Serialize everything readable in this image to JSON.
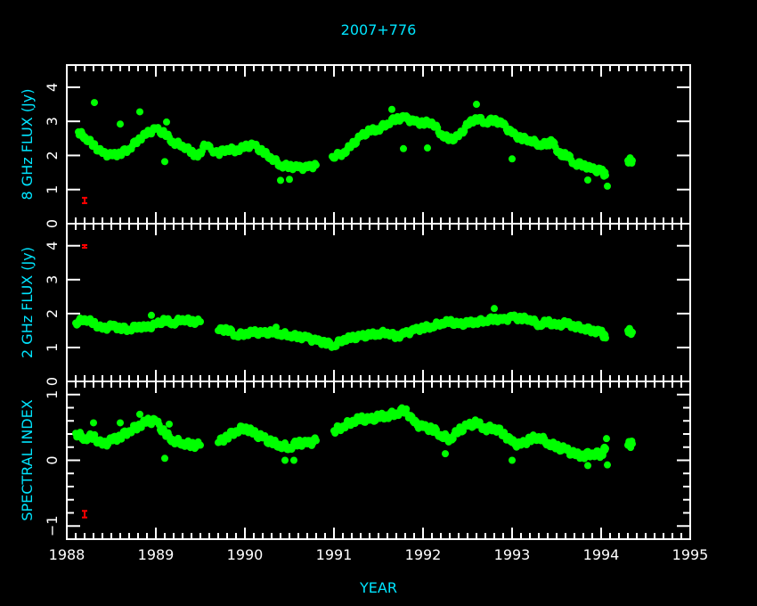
{
  "chart_data": {
    "type": "scatter",
    "title": "2007+776",
    "xlabel": "YEAR",
    "xlim": [
      1988,
      1995
    ],
    "xticks": [
      "1988",
      "1989",
      "1990",
      "1991",
      "1992",
      "1993",
      "1994",
      "1995"
    ],
    "point_color": "#00ff00",
    "error_bar_color": "#ff0000",
    "axis_color": "#ffffff",
    "label_color": "#00e5ff",
    "panels": [
      {
        "ylabel": "8 GHz FLUX (Jy)",
        "ylim": [
          0,
          4.65
        ],
        "yticks": [
          "0",
          "1",
          "2",
          "3",
          "4"
        ],
        "error_bar": {
          "x": 1988.2,
          "y": 0.68,
          "err": 0.08
        },
        "points": [
          [
            1988.13,
            2.69
          ],
          [
            1988.2,
            2.55
          ],
          [
            1988.3,
            2.3
          ],
          [
            1988.4,
            2.06
          ],
          [
            1988.5,
            2.0
          ],
          [
            1988.6,
            2.06
          ],
          [
            1988.7,
            2.2
          ],
          [
            1988.8,
            2.46
          ],
          [
            1988.9,
            2.64
          ],
          [
            1989.0,
            2.77
          ],
          [
            1989.1,
            2.64
          ],
          [
            1989.2,
            2.38
          ],
          [
            1989.3,
            2.3
          ],
          [
            1989.4,
            2.1
          ],
          [
            1989.47,
            1.95
          ],
          [
            1989.55,
            2.3
          ],
          [
            1989.7,
            2.06
          ],
          [
            1989.8,
            2.2
          ],
          [
            1989.9,
            2.15
          ],
          [
            1990.0,
            2.25
          ],
          [
            1990.1,
            2.3
          ],
          [
            1990.2,
            2.1
          ],
          [
            1990.3,
            1.93
          ],
          [
            1990.4,
            1.72
          ],
          [
            1990.5,
            1.68
          ],
          [
            1990.6,
            1.64
          ],
          [
            1990.7,
            1.64
          ],
          [
            1990.8,
            1.72
          ],
          [
            1990.98,
            1.97
          ],
          [
            1991.1,
            2.06
          ],
          [
            1991.2,
            2.3
          ],
          [
            1991.3,
            2.55
          ],
          [
            1991.4,
            2.72
          ],
          [
            1991.5,
            2.77
          ],
          [
            1991.6,
            2.95
          ],
          [
            1991.7,
            3.08
          ],
          [
            1991.8,
            3.1
          ],
          [
            1991.9,
            2.98
          ],
          [
            1992.0,
            2.95
          ],
          [
            1992.1,
            2.98
          ],
          [
            1992.2,
            2.64
          ],
          [
            1992.3,
            2.46
          ],
          [
            1992.4,
            2.55
          ],
          [
            1992.5,
            2.9
          ],
          [
            1992.6,
            3.1
          ],
          [
            1992.7,
            2.98
          ],
          [
            1992.8,
            3.05
          ],
          [
            1992.9,
            2.9
          ],
          [
            1993.0,
            2.64
          ],
          [
            1993.1,
            2.5
          ],
          [
            1993.2,
            2.46
          ],
          [
            1993.3,
            2.33
          ],
          [
            1993.4,
            2.33
          ],
          [
            1993.45,
            2.4
          ],
          [
            1993.55,
            1.98
          ],
          [
            1993.6,
            2.06
          ],
          [
            1993.7,
            1.77
          ],
          [
            1993.8,
            1.73
          ],
          [
            1993.9,
            1.59
          ],
          [
            1994.0,
            1.55
          ],
          [
            1994.05,
            1.42
          ],
          [
            1994.3,
            1.85
          ],
          [
            1994.35,
            1.85
          ]
        ],
        "outliers": [
          [
            1988.31,
            3.55
          ],
          [
            1988.6,
            2.92
          ],
          [
            1988.82,
            3.28
          ],
          [
            1989.1,
            1.82
          ],
          [
            1989.12,
            2.98
          ],
          [
            1990.4,
            1.27
          ],
          [
            1990.5,
            1.3
          ],
          [
            1991.65,
            3.35
          ],
          [
            1991.78,
            2.2
          ],
          [
            1992.05,
            2.22
          ],
          [
            1992.6,
            3.5
          ],
          [
            1993.0,
            1.9
          ],
          [
            1993.85,
            1.28
          ],
          [
            1994.07,
            1.1
          ]
        ]
      },
      {
        "ylabel": "2 GHz FLUX (Jy)",
        "ylim": [
          0,
          4.65
        ],
        "yticks": [
          "0",
          "1",
          "2",
          "3",
          "4"
        ],
        "error_bar": {
          "x": 1988.2,
          "y": 4.0,
          "err": 0.02
        },
        "points": [
          [
            1988.1,
            1.72
          ],
          [
            1988.2,
            1.85
          ],
          [
            1988.3,
            1.72
          ],
          [
            1988.4,
            1.54
          ],
          [
            1988.5,
            1.63
          ],
          [
            1988.6,
            1.58
          ],
          [
            1988.7,
            1.54
          ],
          [
            1988.8,
            1.63
          ],
          [
            1988.9,
            1.58
          ],
          [
            1989.0,
            1.67
          ],
          [
            1989.1,
            1.8
          ],
          [
            1989.2,
            1.72
          ],
          [
            1989.3,
            1.85
          ],
          [
            1989.4,
            1.76
          ],
          [
            1989.5,
            1.76
          ],
          [
            1989.7,
            1.5
          ],
          [
            1989.8,
            1.54
          ],
          [
            1989.9,
            1.37
          ],
          [
            1990.0,
            1.41
          ],
          [
            1990.1,
            1.45
          ],
          [
            1990.2,
            1.41
          ],
          [
            1990.3,
            1.45
          ],
          [
            1990.4,
            1.41
          ],
          [
            1990.5,
            1.37
          ],
          [
            1990.6,
            1.32
          ],
          [
            1990.7,
            1.28
          ],
          [
            1990.8,
            1.19
          ],
          [
            1990.9,
            1.15
          ],
          [
            1991.0,
            1.06
          ],
          [
            1991.1,
            1.24
          ],
          [
            1991.2,
            1.28
          ],
          [
            1991.3,
            1.32
          ],
          [
            1991.4,
            1.37
          ],
          [
            1991.5,
            1.41
          ],
          [
            1991.6,
            1.45
          ],
          [
            1991.7,
            1.32
          ],
          [
            1991.8,
            1.41
          ],
          [
            1991.9,
            1.5
          ],
          [
            1992.0,
            1.58
          ],
          [
            1992.1,
            1.63
          ],
          [
            1992.2,
            1.72
          ],
          [
            1992.3,
            1.76
          ],
          [
            1992.4,
            1.67
          ],
          [
            1992.5,
            1.72
          ],
          [
            1992.6,
            1.76
          ],
          [
            1992.7,
            1.8
          ],
          [
            1992.8,
            1.85
          ],
          [
            1992.9,
            1.8
          ],
          [
            1993.0,
            1.89
          ],
          [
            1993.1,
            1.85
          ],
          [
            1993.2,
            1.85
          ],
          [
            1993.3,
            1.67
          ],
          [
            1993.4,
            1.76
          ],
          [
            1993.5,
            1.63
          ],
          [
            1993.6,
            1.72
          ],
          [
            1993.7,
            1.63
          ],
          [
            1993.8,
            1.58
          ],
          [
            1993.9,
            1.5
          ],
          [
            1994.0,
            1.45
          ],
          [
            1994.05,
            1.28
          ],
          [
            1994.3,
            1.5
          ],
          [
            1994.35,
            1.45
          ]
        ],
        "outliers": [
          [
            1988.95,
            1.95
          ],
          [
            1990.35,
            1.6
          ],
          [
            1992.8,
            2.15
          ]
        ]
      },
      {
        "ylabel": "SPECTRAL INDEX",
        "ylim": [
          -1.2,
          1.2
        ],
        "yticks": [
          "1",
          "0",
          "−1"
        ],
        "error_bar": {
          "x": 1988.2,
          "y": -0.82,
          "err": 0.05
        },
        "points": [
          [
            1988.1,
            0.41
          ],
          [
            1988.2,
            0.34
          ],
          [
            1988.3,
            0.36
          ],
          [
            1988.4,
            0.23
          ],
          [
            1988.5,
            0.3
          ],
          [
            1988.6,
            0.36
          ],
          [
            1988.7,
            0.45
          ],
          [
            1988.8,
            0.52
          ],
          [
            1988.9,
            0.59
          ],
          [
            1989.0,
            0.59
          ],
          [
            1989.1,
            0.41
          ],
          [
            1989.2,
            0.3
          ],
          [
            1989.3,
            0.27
          ],
          [
            1989.4,
            0.23
          ],
          [
            1989.5,
            0.23
          ],
          [
            1989.7,
            0.27
          ],
          [
            1989.8,
            0.36
          ],
          [
            1989.9,
            0.45
          ],
          [
            1990.0,
            0.5
          ],
          [
            1990.1,
            0.41
          ],
          [
            1990.2,
            0.34
          ],
          [
            1990.3,
            0.27
          ],
          [
            1990.4,
            0.23
          ],
          [
            1990.5,
            0.2
          ],
          [
            1990.6,
            0.27
          ],
          [
            1990.7,
            0.25
          ],
          [
            1990.8,
            0.3
          ],
          [
            1991.0,
            0.45
          ],
          [
            1991.1,
            0.52
          ],
          [
            1991.2,
            0.59
          ],
          [
            1991.3,
            0.63
          ],
          [
            1991.4,
            0.61
          ],
          [
            1991.5,
            0.66
          ],
          [
            1991.6,
            0.68
          ],
          [
            1991.7,
            0.72
          ],
          [
            1991.8,
            0.77
          ],
          [
            1991.9,
            0.57
          ],
          [
            1992.0,
            0.5
          ],
          [
            1992.1,
            0.48
          ],
          [
            1992.2,
            0.39
          ],
          [
            1992.3,
            0.32
          ],
          [
            1992.4,
            0.45
          ],
          [
            1992.5,
            0.52
          ],
          [
            1992.6,
            0.57
          ],
          [
            1992.7,
            0.48
          ],
          [
            1992.8,
            0.5
          ],
          [
            1992.9,
            0.41
          ],
          [
            1993.0,
            0.27
          ],
          [
            1993.1,
            0.23
          ],
          [
            1993.2,
            0.32
          ],
          [
            1993.3,
            0.36
          ],
          [
            1993.4,
            0.27
          ],
          [
            1993.5,
            0.2
          ],
          [
            1993.6,
            0.16
          ],
          [
            1993.7,
            0.09
          ],
          [
            1993.8,
            0.07
          ],
          [
            1993.9,
            0.11
          ],
          [
            1994.0,
            0.09
          ],
          [
            1994.05,
            0.18
          ],
          [
            1994.3,
            0.23
          ],
          [
            1994.35,
            0.25
          ]
        ],
        "outliers": [
          [
            1988.3,
            0.57
          ],
          [
            1988.6,
            0.57
          ],
          [
            1988.82,
            0.7
          ],
          [
            1989.1,
            0.03
          ],
          [
            1989.15,
            0.55
          ],
          [
            1990.45,
            0.0
          ],
          [
            1990.55,
            0.0
          ],
          [
            1992.25,
            0.1
          ],
          [
            1993.0,
            0.0
          ],
          [
            1993.85,
            -0.08
          ],
          [
            1994.06,
            0.33
          ],
          [
            1994.07,
            -0.07
          ]
        ]
      }
    ]
  }
}
